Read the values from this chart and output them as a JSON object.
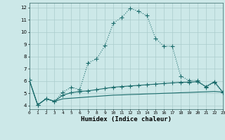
{
  "xlabel": "Humidex (Indice chaleur)",
  "background_color": "#cce8e8",
  "grid_color": "#aacccc",
  "line_color": "#1a6b6b",
  "line1_x": [
    0,
    1,
    2,
    3,
    4,
    5,
    6,
    7,
    8,
    9,
    10,
    11,
    12,
    13,
    14,
    15,
    16,
    17,
    18,
    19,
    20,
    21,
    22,
    23
  ],
  "line1_y": [
    6.1,
    4.05,
    4.55,
    4.35,
    5.1,
    5.5,
    5.3,
    7.5,
    7.8,
    8.9,
    10.75,
    11.2,
    11.95,
    11.7,
    11.35,
    9.5,
    8.85,
    8.85,
    6.4,
    6.05,
    6.05,
    5.5,
    5.9,
    5.05
  ],
  "line2_x": [
    0,
    1,
    2,
    3,
    4,
    5,
    6,
    7,
    8,
    9,
    10,
    11,
    12,
    13,
    14,
    15,
    16,
    17,
    18,
    19,
    20,
    21,
    22,
    23
  ],
  "line2_y": [
    6.1,
    4.05,
    4.55,
    4.35,
    4.85,
    5.05,
    5.15,
    5.2,
    5.3,
    5.4,
    5.5,
    5.55,
    5.6,
    5.65,
    5.7,
    5.75,
    5.8,
    5.85,
    5.9,
    5.9,
    5.95,
    5.55,
    5.95,
    5.1
  ],
  "line3_x": [
    0,
    1,
    2,
    3,
    4,
    5,
    6,
    7,
    8,
    9,
    10,
    11,
    12,
    13,
    14,
    15,
    16,
    17,
    18,
    19,
    20,
    21,
    22,
    23
  ],
  "line3_y": [
    6.1,
    4.05,
    4.55,
    4.35,
    4.55,
    4.6,
    4.65,
    4.7,
    4.75,
    4.8,
    4.85,
    4.87,
    4.9,
    4.92,
    4.95,
    4.97,
    5.0,
    5.02,
    5.05,
    5.07,
    5.1,
    5.12,
    5.15,
    5.1
  ],
  "xlim": [
    0,
    23
  ],
  "ylim": [
    3.7,
    12.4
  ],
  "yticks": [
    4,
    5,
    6,
    7,
    8,
    9,
    10,
    11,
    12
  ],
  "xticks": [
    0,
    1,
    2,
    3,
    4,
    5,
    6,
    7,
    8,
    9,
    10,
    11,
    12,
    13,
    14,
    15,
    16,
    17,
    18,
    19,
    20,
    21,
    22,
    23
  ],
  "marker_size": 3,
  "line_width": 0.8
}
